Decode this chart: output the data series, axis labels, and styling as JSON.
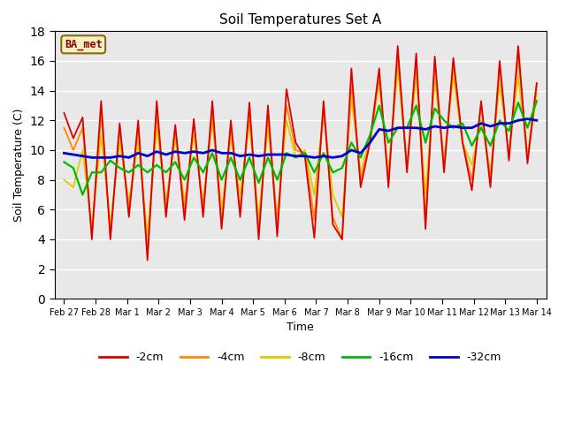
{
  "title": "Soil Temperatures Set A",
  "xlabel": "Time",
  "ylabel": "Soil Temperature (C)",
  "annotation": "BA_met",
  "ylim": [
    0,
    18
  ],
  "background_color": "#ffffff",
  "plot_bg_color": "#e8e8e8",
  "grid_color": "#ffffff",
  "series": {
    "-2cm": {
      "color": "#dd0000",
      "lw": 1.3
    },
    "-4cm": {
      "color": "#ff8800",
      "lw": 1.3
    },
    "-8cm": {
      "color": "#ddcc00",
      "lw": 1.3
    },
    "-16cm": {
      "color": "#00bb00",
      "lw": 1.6
    },
    "-32cm": {
      "color": "#0000cc",
      "lw": 2.0
    }
  },
  "x_ticks": [
    "Feb 27",
    "Feb 28",
    "Mar 1",
    "Mar 2",
    "Mar 3",
    "Mar 4",
    "Mar 5",
    "Mar 6",
    "Mar 7",
    "Mar 8",
    "Mar 9",
    "Mar 10",
    "Mar 11",
    "Mar 12",
    "Mar 13",
    "Mar 14"
  ],
  "d2cm": [
    12.5,
    10.8,
    12.2,
    4.0,
    13.3,
    4.0,
    11.8,
    5.5,
    12.0,
    2.6,
    13.3,
    5.5,
    11.7,
    5.3,
    12.1,
    5.5,
    13.3,
    4.7,
    12.0,
    5.5,
    13.2,
    4.0,
    13.0,
    4.2,
    14.1,
    10.5,
    9.5,
    4.1,
    13.3,
    5.0,
    4.0,
    15.5,
    7.5,
    10.5,
    15.5,
    7.5,
    17.0,
    8.5,
    16.5,
    4.7,
    16.3,
    8.5,
    16.2,
    10.5,
    7.3,
    13.3,
    7.5,
    16.0,
    9.3,
    17.0,
    9.1,
    14.5
  ],
  "d4cm": [
    11.5,
    10.0,
    11.5,
    4.3,
    12.5,
    4.3,
    11.5,
    6.0,
    11.5,
    3.0,
    12.5,
    6.0,
    11.5,
    6.0,
    11.8,
    6.0,
    12.5,
    5.0,
    11.5,
    6.0,
    12.5,
    4.5,
    12.3,
    5.0,
    13.0,
    10.0,
    9.8,
    5.3,
    12.8,
    5.5,
    4.0,
    14.5,
    8.0,
    10.5,
    15.0,
    8.0,
    16.3,
    8.8,
    15.8,
    5.5,
    15.8,
    9.0,
    15.8,
    10.5,
    8.0,
    13.0,
    8.0,
    15.5,
    9.5,
    16.3,
    9.5,
    14.5
  ],
  "d8cm": [
    8.0,
    7.5,
    10.0,
    4.8,
    11.0,
    5.0,
    10.5,
    6.5,
    10.5,
    4.3,
    11.5,
    6.5,
    10.8,
    6.5,
    11.0,
    6.5,
    12.0,
    6.0,
    10.8,
    7.0,
    11.8,
    5.5,
    11.5,
    5.5,
    12.0,
    9.5,
    10.0,
    7.0,
    12.5,
    7.0,
    5.5,
    13.5,
    8.5,
    10.8,
    14.5,
    8.5,
    15.5,
    9.0,
    15.0,
    7.0,
    14.8,
    9.3,
    15.0,
    10.5,
    9.0,
    12.0,
    8.5,
    14.5,
    9.8,
    15.0,
    9.5,
    13.8
  ],
  "d16cm": [
    9.2,
    8.8,
    7.0,
    8.5,
    8.5,
    9.3,
    8.8,
    8.5,
    9.0,
    8.5,
    9.0,
    8.5,
    9.2,
    8.0,
    9.5,
    8.5,
    9.8,
    8.0,
    9.5,
    8.0,
    9.5,
    7.8,
    9.5,
    8.0,
    9.8,
    9.5,
    9.8,
    8.5,
    9.8,
    8.5,
    8.8,
    10.5,
    9.5,
    11.0,
    13.0,
    10.5,
    11.5,
    11.5,
    13.0,
    10.5,
    12.8,
    12.0,
    11.5,
    11.8,
    10.3,
    11.5,
    10.3,
    12.0,
    11.3,
    13.2,
    11.5,
    13.3
  ],
  "d32cm": [
    9.8,
    9.7,
    9.6,
    9.5,
    9.5,
    9.5,
    9.6,
    9.5,
    9.8,
    9.6,
    9.9,
    9.7,
    9.9,
    9.8,
    9.9,
    9.8,
    10.0,
    9.8,
    9.8,
    9.6,
    9.7,
    9.6,
    9.7,
    9.7,
    9.7,
    9.6,
    9.6,
    9.5,
    9.6,
    9.5,
    9.6,
    10.0,
    9.8,
    10.5,
    11.4,
    11.3,
    11.5,
    11.5,
    11.5,
    11.4,
    11.6,
    11.5,
    11.6,
    11.5,
    11.5,
    11.8,
    11.6,
    11.8,
    11.8,
    12.0,
    12.1,
    12.0
  ]
}
